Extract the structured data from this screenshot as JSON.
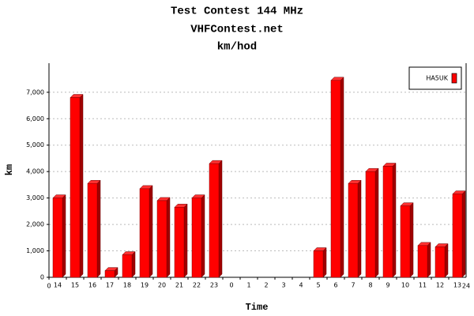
{
  "chart_data": {
    "type": "bar",
    "title": "Test Contest 144 MHz",
    "subtitle": "VHFContest.net",
    "unit_title": "km/hod",
    "x_label": "Time",
    "y_label": "km",
    "categories": [
      "14",
      "15",
      "16",
      "17",
      "18",
      "19",
      "20",
      "21",
      "22",
      "23",
      "0",
      "1",
      "2",
      "3",
      "4",
      "5",
      "6",
      "7",
      "8",
      "9",
      "10",
      "11",
      "12",
      "13"
    ],
    "xlim": [
      0,
      24
    ],
    "series": [
      {
        "name": "HA5UK",
        "color": "#ff0000",
        "values": [
          3000,
          6800,
          3550,
          250,
          850,
          3350,
          2900,
          2650,
          3000,
          4300,
          0,
          0,
          0,
          0,
          0,
          1000,
          7450,
          3550,
          4000,
          4200,
          2700,
          1200,
          1150,
          3150
        ]
      }
    ],
    "ylim": [
      0,
      8100
    ],
    "yticks": [
      0,
      {
        "value": 1000,
        "label": "1,000"
      },
      {
        "value": 2000,
        "label": "2,000"
      },
      {
        "value": 3000,
        "label": "3,000"
      },
      {
        "value": 4000,
        "label": "4,000"
      },
      {
        "value": 5000,
        "label": "5,000"
      },
      {
        "value": 6000,
        "label": "6,000"
      },
      {
        "value": 7000,
        "label": "7,000"
      }
    ],
    "grid": true,
    "legend": "top-right"
  }
}
